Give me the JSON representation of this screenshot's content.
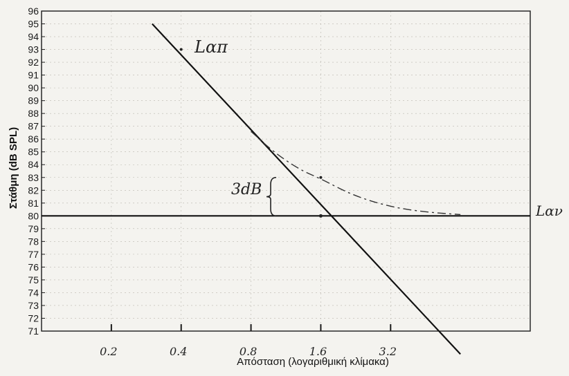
{
  "chart_data": {
    "type": "line",
    "title": "",
    "xlabel": "Απόσταση (λογαριθμική κλίμακα)",
    "ylabel": "Στάθμη (dB SPL)",
    "x_scale": "log2",
    "xlim": [
      0.1,
      12.8
    ],
    "ylim": [
      71,
      96
    ],
    "x_ticks": [
      0.2,
      0.4,
      0.8,
      1.6,
      3.2
    ],
    "x_tick_labels": [
      "0.2",
      "0.4",
      "0.8",
      "1.6",
      "3.2"
    ],
    "y_ticks": [
      71,
      72,
      73,
      74,
      75,
      76,
      77,
      78,
      79,
      80,
      81,
      82,
      83,
      84,
      85,
      86,
      87,
      88,
      89,
      90,
      91,
      92,
      93,
      94,
      95,
      96
    ],
    "grid": true,
    "series": [
      {
        "name": "Lαπ",
        "style": "solid",
        "color": "#111111",
        "x": [
          0.3,
          6.4
        ],
        "y": [
          95,
          69.2
        ]
      },
      {
        "name": "Lαν",
        "style": "solid",
        "color": "#111111",
        "x": [
          0.1,
          12.8
        ],
        "y": [
          80,
          80
        ]
      },
      {
        "name": "",
        "style": "dashed",
        "color": "#333333",
        "x": [
          0.8,
          1.0,
          1.3,
          1.6,
          2.2,
          3.2,
          4.5,
          6.4
        ],
        "y": [
          86.6,
          85.0,
          83.6,
          82.9,
          81.6,
          80.7,
          80.3,
          80.1
        ]
      }
    ],
    "annotations": [
      {
        "text": "Lαπ",
        "x": 0.4,
        "y": 93
      },
      {
        "text": "Lαν",
        "x": 12.8,
        "y": 80
      },
      {
        "text": "3dB",
        "x": 0.62,
        "y": 81.8
      }
    ]
  },
  "labels": {
    "lap": "Lαπ",
    "lav": "Lαν",
    "threedb": "3dB"
  }
}
